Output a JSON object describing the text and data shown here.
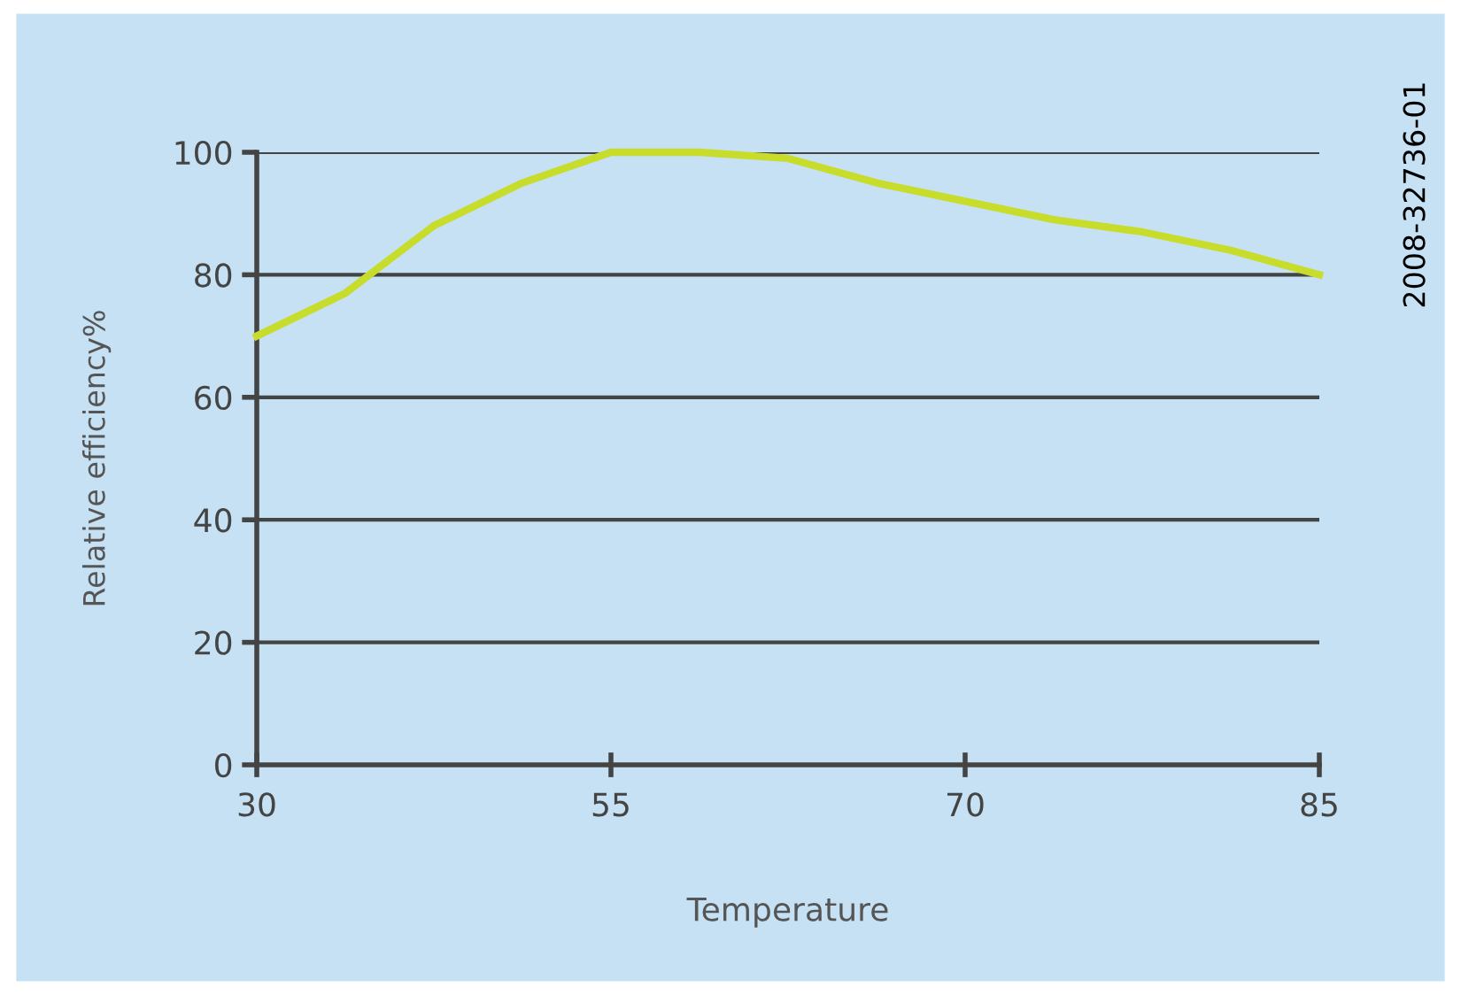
{
  "chart_data": {
    "type": "line",
    "xlabel": "Temperature",
    "ylabel": "Relative efficiency%",
    "categories": [
      "30",
      null,
      null,
      null,
      "55",
      null,
      null,
      null,
      "70",
      null,
      null,
      null,
      "85"
    ],
    "series": [
      {
        "color": "#c8dc2c",
        "values": [
          70,
          77,
          88,
          95,
          100,
          100,
          99,
          95,
          92,
          89,
          87,
          84,
          80
        ]
      }
    ],
    "ylim": [
      0,
      100
    ],
    "yticks": [
      0,
      20,
      40,
      60,
      80,
      100
    ],
    "grid": "y",
    "marker": "none",
    "line_style": "solid",
    "annotations": [
      "2008-32736-01"
    ]
  }
}
